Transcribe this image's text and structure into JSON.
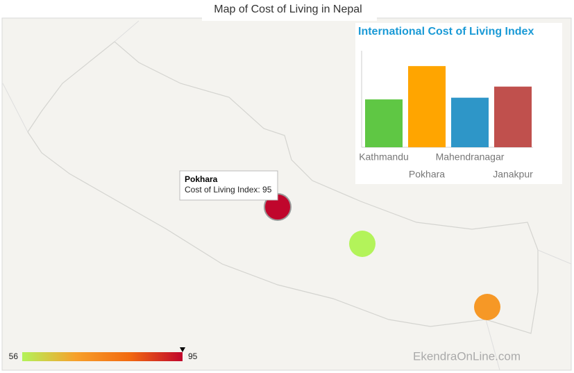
{
  "title": "Map of Cost of Living in Nepal",
  "map": {
    "markers": [
      {
        "value": 95
      },
      {
        "value": 56
      },
      {
        "value": 71
      }
    ],
    "color_scale": {
      "min": 56,
      "max": 95,
      "colors": [
        "#b3f35a",
        "#f7a02a",
        "#f26a10",
        "#c0062c"
      ]
    },
    "tooltip": {
      "title": "Pokhara",
      "text": "Cost of Living Index: 95"
    }
  },
  "chart_data": {
    "type": "bar",
    "title": "International Cost of Living Index",
    "categories": [
      "Kathmandu",
      "Pokhara",
      "Mahendranagar",
      "Janakpur"
    ],
    "values": [
      56,
      95,
      58,
      71
    ],
    "colors": [
      "#5fc744",
      "#ffa500",
      "#2e96c8",
      "#c0504d"
    ],
    "ylim": [
      0,
      113
    ]
  },
  "watermark": "EkendraOnLine.com"
}
